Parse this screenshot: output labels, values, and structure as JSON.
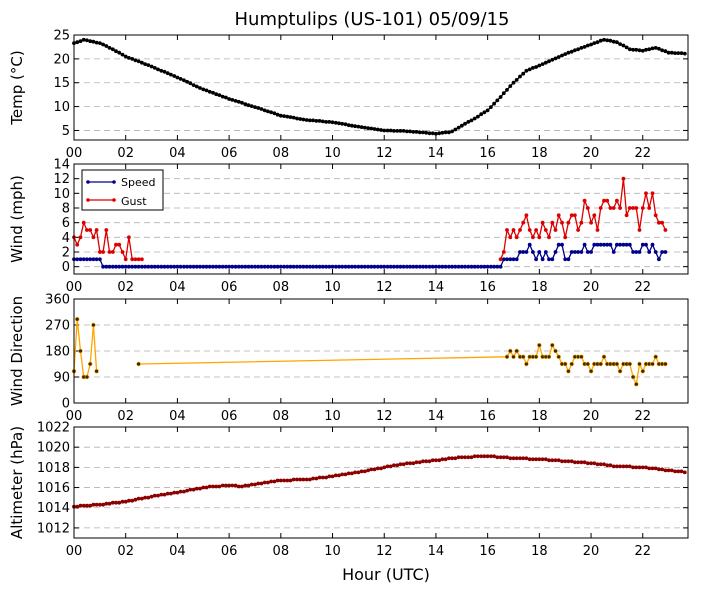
{
  "title": "Humptulips (US-101) 05/09/15",
  "xlabel": "Hour (UTC)",
  "xticks": [
    "00",
    "02",
    "04",
    "06",
    "08",
    "10",
    "12",
    "14",
    "16",
    "18",
    "20",
    "22"
  ],
  "colors": {
    "temp": "#000000",
    "speed": "#00008b",
    "gust": "#dd0000",
    "direction": "#ffa500",
    "altimeter": "#8b0000",
    "grid": "#b0b0b0"
  },
  "chart_data": [
    {
      "type": "line",
      "name": "temperature",
      "ylabel": "Temp ($^\\circ$C)",
      "ylabel_display": "Temp (°C)",
      "ylim": [
        3,
        25
      ],
      "yticks": [
        5,
        10,
        15,
        20,
        25
      ],
      "grid": true,
      "series": [
        {
          "name": "Temp",
          "keypoints": [
            [
              0.0,
              23.3
            ],
            [
              0.4,
              24.0
            ],
            [
              1.0,
              23.3
            ],
            [
              1.5,
              22.0
            ],
            [
              2.0,
              20.5
            ],
            [
              3.0,
              18.4
            ],
            [
              4.0,
              16.1
            ],
            [
              5.0,
              13.6
            ],
            [
              6.0,
              11.6
            ],
            [
              7.0,
              9.9
            ],
            [
              8.0,
              8.1
            ],
            [
              9.0,
              7.2
            ],
            [
              10.0,
              6.7
            ],
            [
              11.0,
              5.8
            ],
            [
              12.0,
              5.0
            ],
            [
              13.0,
              4.8
            ],
            [
              14.0,
              4.3
            ],
            [
              14.6,
              4.7
            ],
            [
              15.0,
              6.0
            ],
            [
              15.5,
              7.5
            ],
            [
              16.0,
              9.2
            ],
            [
              16.5,
              12.0
            ],
            [
              17.0,
              15.0
            ],
            [
              17.5,
              17.5
            ],
            [
              18.0,
              18.6
            ],
            [
              18.5,
              19.8
            ],
            [
              19.0,
              21.0
            ],
            [
              19.5,
              22.0
            ],
            [
              20.0,
              23.0
            ],
            [
              20.5,
              24.0
            ],
            [
              21.0,
              23.5
            ],
            [
              21.5,
              22.0
            ],
            [
              22.0,
              21.7
            ],
            [
              22.5,
              22.3
            ],
            [
              23.0,
              21.3
            ],
            [
              23.7,
              21.1
            ]
          ]
        }
      ]
    },
    {
      "type": "line",
      "name": "wind",
      "ylabel": "Wind (mph)",
      "ylim": [
        -1,
        14
      ],
      "yticks": [
        0,
        2,
        4,
        6,
        8,
        10,
        12,
        14
      ],
      "grid": true,
      "legend": "upper-left",
      "series": [
        {
          "name": "Speed",
          "keypoints": [
            [
              0.0,
              1
            ],
            [
              1.1,
              1
            ],
            [
              1.25,
              0
            ],
            [
              16.6,
              0
            ],
            [
              16.8,
              1
            ],
            [
              17.3,
              1
            ],
            [
              17.5,
              2
            ],
            [
              17.9,
              2
            ],
            [
              18.2,
              1
            ],
            [
              18.5,
              2
            ],
            [
              18.7,
              2
            ],
            [
              19.2,
              1
            ],
            [
              19.5,
              2
            ],
            [
              19.8,
              3
            ],
            [
              20.1,
              2
            ],
            [
              20.5,
              2
            ],
            [
              20.8,
              3
            ],
            [
              21.2,
              3
            ],
            [
              21.5,
              3
            ],
            [
              21.8,
              2
            ],
            [
              22.2,
              3
            ],
            [
              22.8,
              2
            ],
            [
              23.0,
              3
            ],
            [
              23.3,
              2
            ],
            [
              23.5,
              1
            ],
            [
              23.7,
              2
            ]
          ],
          "values": [
            1,
            1,
            1,
            1,
            1,
            1,
            1,
            1,
            1,
            0,
            0,
            0,
            0,
            0,
            0,
            0,
            0,
            0,
            0,
            0,
            0,
            0,
            0,
            0,
            0,
            0,
            0,
            0,
            0,
            0,
            0,
            0,
            0,
            0,
            0,
            0,
            0,
            0,
            0,
            0,
            0,
            0,
            0,
            0,
            0,
            0,
            0,
            0,
            0,
            0,
            0,
            0,
            0,
            0,
            0,
            0,
            0,
            0,
            0,
            0,
            0,
            0,
            0,
            0,
            0,
            0,
            0,
            0,
            0,
            0,
            0,
            0,
            0,
            0,
            0,
            0,
            0,
            0,
            0,
            0,
            0,
            0,
            0,
            0,
            0,
            0,
            0,
            0,
            0,
            0,
            0,
            0,
            0,
            0,
            0,
            0,
            0,
            0,
            0,
            0,
            0,
            0,
            0,
            0,
            0,
            0,
            0,
            0,
            0,
            0,
            0,
            0,
            0,
            0,
            0,
            0,
            0,
            0,
            0,
            0,
            0,
            0,
            0,
            0,
            0,
            0,
            0,
            0,
            0,
            0,
            0,
            0,
            0,
            1,
            1,
            1,
            1,
            1,
            2,
            2,
            2,
            3,
            2,
            1,
            2,
            1,
            2,
            1,
            1,
            2,
            3,
            3,
            1,
            1,
            2,
            2,
            2,
            2,
            3,
            2,
            2,
            3,
            3,
            3,
            3,
            3,
            3,
            2,
            3,
            3,
            3,
            3,
            3,
            2,
            2,
            2,
            3,
            3,
            2,
            3,
            2,
            1,
            2,
            2
          ]
        },
        {
          "name": "Gust",
          "x": [
            0.0,
            0.125,
            0.25,
            0.375,
            0.5,
            0.625,
            0.75,
            0.875,
            1.0,
            1.125,
            1.25,
            1.375,
            1.5,
            1.625,
            1.75,
            1.875,
            2.0,
            2.125,
            2.25,
            2.375,
            2.5,
            2.625,
            2.75,
            2.875,
            3.0,
            16.5,
            16.625,
            16.75,
            16.875,
            17.0,
            17.125,
            17.25,
            17.375,
            17.5,
            17.625,
            17.75,
            17.875,
            18.0,
            18.125,
            18.25,
            18.375,
            18.5,
            18.625,
            18.75,
            18.875,
            19.0,
            19.125,
            19.25,
            19.375,
            19.5,
            19.625,
            19.75,
            19.875,
            20.0,
            20.125,
            20.25,
            20.375,
            20.5,
            20.625,
            20.75,
            20.875,
            21.0,
            21.125,
            21.25,
            21.375,
            21.5,
            21.625,
            21.75,
            21.875,
            22.0,
            22.125,
            22.25,
            22.375,
            22.5,
            22.625,
            22.75,
            22.875,
            23.0,
            23.125,
            23.25,
            23.375,
            23.5,
            23.625
          ],
          "values": [
            4,
            3,
            4,
            6,
            5,
            5,
            4,
            5,
            2,
            2,
            5,
            2,
            2,
            3,
            3,
            2,
            1,
            4,
            1,
            1,
            1,
            1,
            null,
            null,
            null,
            1,
            2,
            5,
            4,
            5,
            4,
            5,
            6,
            7,
            5,
            4,
            5,
            4,
            6,
            5,
            4,
            6,
            5,
            7,
            6,
            4,
            6,
            7,
            7,
            5,
            6,
            9,
            8,
            6,
            7,
            5,
            8,
            9,
            9,
            8,
            8,
            9,
            8,
            12,
            7,
            8,
            8,
            8,
            5,
            8,
            10,
            8,
            10,
            7,
            6,
            6,
            5,
            null,
            null,
            null,
            null,
            null,
            null
          ]
        }
      ]
    },
    {
      "type": "line",
      "name": "wind_direction",
      "ylabel": "Wind Direction",
      "ylim": [
        0,
        360
      ],
      "yticks": [
        0,
        90,
        180,
        270,
        360
      ],
      "grid": true,
      "series": [
        {
          "name": "Direction",
          "x": [
            0.0,
            0.125,
            0.25,
            0.375,
            0.5,
            0.625,
            0.75,
            0.875,
            1.0,
            1.125,
            2.5,
            16.75,
            16.875,
            17.0,
            17.125,
            17.25,
            17.375,
            17.5,
            17.625,
            17.75,
            17.875,
            18.0,
            18.125,
            18.25,
            18.375,
            18.5,
            18.625,
            18.75,
            18.875,
            19.0,
            19.125,
            19.25,
            19.375,
            19.5,
            19.625,
            19.75,
            19.875,
            20.0,
            20.125,
            20.25,
            20.375,
            20.5,
            20.625,
            20.75,
            20.875,
            21.0,
            21.125,
            21.25,
            21.375,
            21.5,
            21.625,
            21.75,
            21.875,
            22.0,
            22.125,
            22.25,
            22.375,
            22.5,
            22.625,
            22.75,
            22.875,
            23.0,
            23.125,
            23.25,
            23.375,
            23.5,
            23.625
          ],
          "values": [
            110,
            290,
            180,
            90,
            90,
            135,
            270,
            110,
            null,
            null,
            135,
            160,
            180,
            160,
            180,
            160,
            160,
            135,
            160,
            160,
            160,
            200,
            160,
            160,
            160,
            200,
            180,
            160,
            135,
            135,
            110,
            135,
            160,
            160,
            160,
            135,
            135,
            110,
            135,
            135,
            135,
            160,
            135,
            135,
            135,
            135,
            110,
            135,
            135,
            135,
            90,
            65,
            135,
            110,
            135,
            135,
            135,
            160,
            135,
            135,
            135,
            null,
            null,
            null,
            null,
            null,
            null
          ]
        }
      ]
    },
    {
      "type": "line",
      "name": "altimeter",
      "ylabel": "Altimeter (hPa)",
      "ylim": [
        1011,
        1022
      ],
      "yticks": [
        1012,
        1014,
        1016,
        1018,
        1020,
        1022
      ],
      "grid": true,
      "series": [
        {
          "name": "Altimeter",
          "keypoints": [
            [
              0.0,
              1014.1
            ],
            [
              1.0,
              1014.3
            ],
            [
              2.0,
              1014.6
            ],
            [
              3.0,
              1015.1
            ],
            [
              4.0,
              1015.5
            ],
            [
              5.0,
              1016.0
            ],
            [
              6.0,
              1016.2
            ],
            [
              6.5,
              1016.1
            ],
            [
              7.0,
              1016.3
            ],
            [
              8.0,
              1016.7
            ],
            [
              9.0,
              1016.8
            ],
            [
              10.0,
              1017.1
            ],
            [
              11.0,
              1017.5
            ],
            [
              12.0,
              1018.0
            ],
            [
              13.0,
              1018.4
            ],
            [
              14.0,
              1018.7
            ],
            [
              15.0,
              1019.0
            ],
            [
              16.0,
              1019.1
            ],
            [
              17.0,
              1018.9
            ],
            [
              18.0,
              1018.8
            ],
            [
              19.0,
              1018.6
            ],
            [
              20.0,
              1018.4
            ],
            [
              21.0,
              1018.1
            ],
            [
              22.0,
              1018.0
            ],
            [
              23.0,
              1017.7
            ],
            [
              23.7,
              1017.5
            ]
          ]
        }
      ]
    }
  ]
}
